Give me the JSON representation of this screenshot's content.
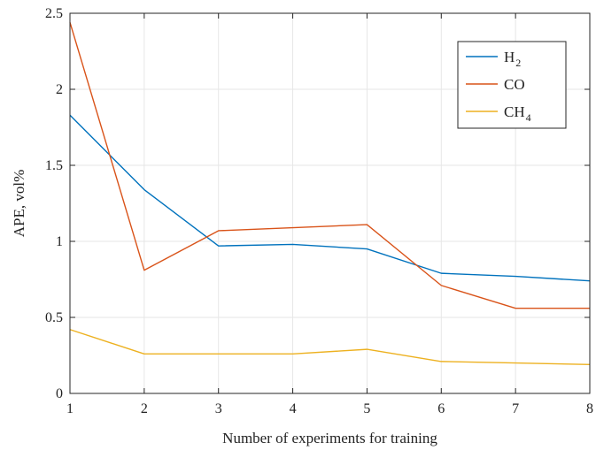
{
  "chart_data": {
    "type": "line",
    "xlabel": "Number of experiments for training",
    "ylabel": "APE, vol%",
    "x": [
      1,
      2,
      3,
      4,
      5,
      6,
      7,
      8
    ],
    "xlim": [
      1,
      8
    ],
    "ylim": [
      0,
      2.5
    ],
    "xticks": [
      "1",
      "2",
      "3",
      "4",
      "5",
      "6",
      "7",
      "8"
    ],
    "yticks": [
      "0",
      "0.5",
      "1",
      "1.5",
      "2",
      "2.5"
    ],
    "grid": true,
    "legend_position": "top-right",
    "series": [
      {
        "name": "H",
        "sub": "2",
        "color": "#0072bd",
        "values": [
          1.83,
          1.34,
          0.97,
          0.98,
          0.95,
          0.79,
          0.77,
          0.74
        ]
      },
      {
        "name": "CO",
        "sub": "",
        "color": "#d95319",
        "values": [
          2.44,
          0.81,
          1.07,
          1.09,
          1.11,
          0.71,
          0.56,
          0.56
        ]
      },
      {
        "name": "CH",
        "sub": "4",
        "color": "#edb120",
        "values": [
          0.42,
          0.26,
          0.26,
          0.26,
          0.29,
          0.21,
          0.2,
          0.19
        ]
      }
    ]
  }
}
